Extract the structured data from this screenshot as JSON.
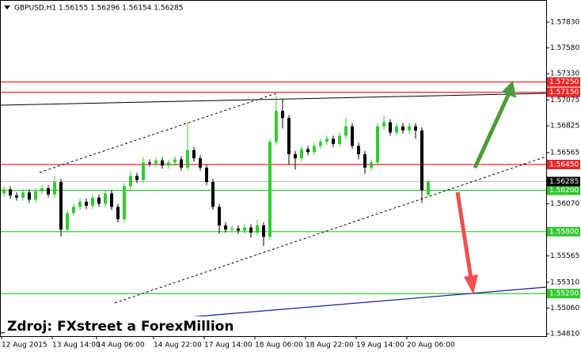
{
  "chart_data": {
    "type": "candlestick",
    "title": "GBPUSD,H1  1.56155 1.56296 1.56154 1.56285",
    "annotation": "Zdroj: FXstreet a ForexMillion",
    "up_color": "#33cc33",
    "down_color": "#000000",
    "categories": [
      "12 Aug 2015",
      null,
      null,
      null,
      null,
      null,
      null,
      null,
      "13 Aug 14:00",
      null,
      null,
      null,
      null,
      null,
      null,
      "14 Aug 06:00",
      null,
      null,
      null,
      null,
      null,
      null,
      null,
      null,
      "14 Aug 22:00",
      null,
      null,
      null,
      null,
      null,
      null,
      null,
      "17 Aug 14:00",
      null,
      null,
      null,
      null,
      null,
      null,
      null,
      "18 Aug 06:00",
      null,
      null,
      null,
      null,
      null,
      null,
      null,
      "18 Aug 22:00",
      null,
      null,
      null,
      null,
      null,
      null,
      null,
      "19 Aug 14:00",
      null,
      null,
      null,
      null,
      null,
      null,
      null,
      "20 Aug 06:00",
      null,
      null,
      null
    ],
    "open": [
      1.5617,
      1.5621,
      1.5615,
      1.5613,
      1.5618,
      1.5611,
      1.5619,
      1.5622,
      1.5616,
      1.5628,
      1.5582,
      1.5598,
      1.5604,
      1.5609,
      1.5605,
      1.5613,
      1.5607,
      1.5617,
      1.5604,
      1.5592,
      1.5624,
      1.5634,
      1.563,
      1.5647,
      1.5646,
      1.5649,
      1.5644,
      1.5647,
      1.565,
      1.5642,
      1.5659,
      1.5651,
      1.5642,
      1.5628,
      1.5604,
      1.5586,
      1.5582,
      1.5583,
      1.5581,
      1.5584,
      1.5579,
      1.5586,
      1.5575,
      1.5667,
      1.5697,
      1.569,
      1.5655,
      1.5651,
      1.566,
      1.5657,
      1.5663,
      1.5667,
      1.567,
      1.5665,
      1.5673,
      1.5682,
      1.5663,
      1.5655,
      1.5642,
      1.5647,
      1.5682,
      1.5686,
      1.5676,
      1.5682,
      1.5678,
      1.5682,
      1.5678,
      1.56155
    ],
    "high": [
      1.5624,
      1.5624,
      1.5618,
      1.5621,
      1.5621,
      1.5622,
      1.5625,
      1.5625,
      1.5634,
      1.5631,
      1.5601,
      1.5607,
      1.5612,
      1.5612,
      1.5616,
      1.5616,
      1.562,
      1.562,
      1.5607,
      1.5627,
      1.5639,
      1.5637,
      1.5652,
      1.565,
      1.5652,
      1.5652,
      1.565,
      1.5653,
      1.5653,
      1.5686,
      1.5662,
      1.5654,
      1.5645,
      1.5631,
      1.5607,
      1.5589,
      1.5586,
      1.5586,
      1.5587,
      1.5587,
      1.5592,
      1.5589,
      1.567,
      1.5712,
      1.5708,
      1.5693,
      1.5658,
      1.5663,
      1.5663,
      1.5666,
      1.567,
      1.5673,
      1.5673,
      1.5676,
      1.569,
      1.5685,
      1.5666,
      1.5658,
      1.565,
      1.5685,
      1.5692,
      1.5689,
      1.5685,
      1.5685,
      1.5685,
      1.5685,
      1.5681,
      1.56296
    ],
    "low": [
      1.5614,
      1.5612,
      1.561,
      1.561,
      1.5608,
      1.5608,
      1.5616,
      1.5613,
      1.5613,
      1.5575,
      1.5579,
      1.5595,
      1.5601,
      1.5602,
      1.5602,
      1.5604,
      1.5604,
      1.5601,
      1.5589,
      1.5589,
      1.5621,
      1.5627,
      1.5627,
      1.5643,
      1.5643,
      1.5641,
      1.5641,
      1.5644,
      1.5639,
      1.5639,
      1.5648,
      1.5639,
      1.5625,
      1.5601,
      1.5578,
      1.5579,
      1.5579,
      1.5578,
      1.5578,
      1.5574,
      1.5576,
      1.5566,
      1.5572,
      1.5664,
      1.568,
      1.5645,
      1.564,
      1.5648,
      1.5654,
      1.5654,
      1.566,
      1.5664,
      1.5662,
      1.5662,
      1.567,
      1.566,
      1.565,
      1.5636,
      1.5639,
      1.5644,
      1.5679,
      1.5673,
      1.5673,
      1.5675,
      1.5675,
      1.567,
      1.5608,
      1.56154
    ],
    "close": [
      1.5621,
      1.5615,
      1.5613,
      1.5618,
      1.5611,
      1.5619,
      1.5622,
      1.5616,
      1.5628,
      1.5582,
      1.5598,
      1.5604,
      1.5609,
      1.5605,
      1.5613,
      1.5607,
      1.5617,
      1.5604,
      1.5592,
      1.5624,
      1.5634,
      1.563,
      1.5647,
      1.5646,
      1.5649,
      1.5644,
      1.5647,
      1.565,
      1.5642,
      1.5659,
      1.5651,
      1.5642,
      1.5628,
      1.5604,
      1.5586,
      1.5582,
      1.5583,
      1.5581,
      1.5584,
      1.5579,
      1.5586,
      1.5575,
      1.5667,
      1.5697,
      1.569,
      1.5655,
      1.5651,
      1.566,
      1.5657,
      1.5663,
      1.5667,
      1.567,
      1.5665,
      1.5673,
      1.5682,
      1.5663,
      1.5655,
      1.5642,
      1.5647,
      1.5682,
      1.5686,
      1.5676,
      1.5682,
      1.5678,
      1.5682,
      1.5678,
      1.562,
      1.56285
    ],
    "ylim": [
      1.54787,
      1.58044
    ],
    "yticks": [
      {
        "value": 1.5783,
        "label": "1.57830"
      },
      {
        "value": 1.5758,
        "label": "1.57580"
      },
      {
        "value": 1.5733,
        "label": "1.57330"
      },
      {
        "value": 1.57075,
        "label": "1.57075"
      },
      {
        "value": 1.56825,
        "label": "1.56825"
      },
      {
        "value": 1.56565,
        "label": "1.56565"
      },
      {
        "value": 1.5607,
        "label": "1.56070"
      },
      {
        "value": 1.55565,
        "label": "1.55565"
      },
      {
        "value": 1.5531,
        "label": "1.55310"
      },
      {
        "value": 1.5506,
        "label": "1.55060"
      },
      {
        "value": 1.5481,
        "label": "1.54810"
      }
    ],
    "levels": [
      {
        "value": 1.5725,
        "label": "1.57250",
        "color": "#e8282b"
      },
      {
        "value": 1.5715,
        "label": "1.57150",
        "color": "#e8282b"
      },
      {
        "value": 1.5645,
        "label": "1.56450",
        "color": "#e8282b"
      },
      {
        "value": 1.562,
        "label": "1.56200",
        "color": "#32c832"
      },
      {
        "value": 1.558,
        "label": "1.55800",
        "color": "#32c832"
      },
      {
        "value": 1.552,
        "label": "1.55200",
        "color": "#32c832"
      }
    ],
    "current_price": {
      "value": 1.56285,
      "label": "1.56285",
      "color": "#000000"
    }
  }
}
